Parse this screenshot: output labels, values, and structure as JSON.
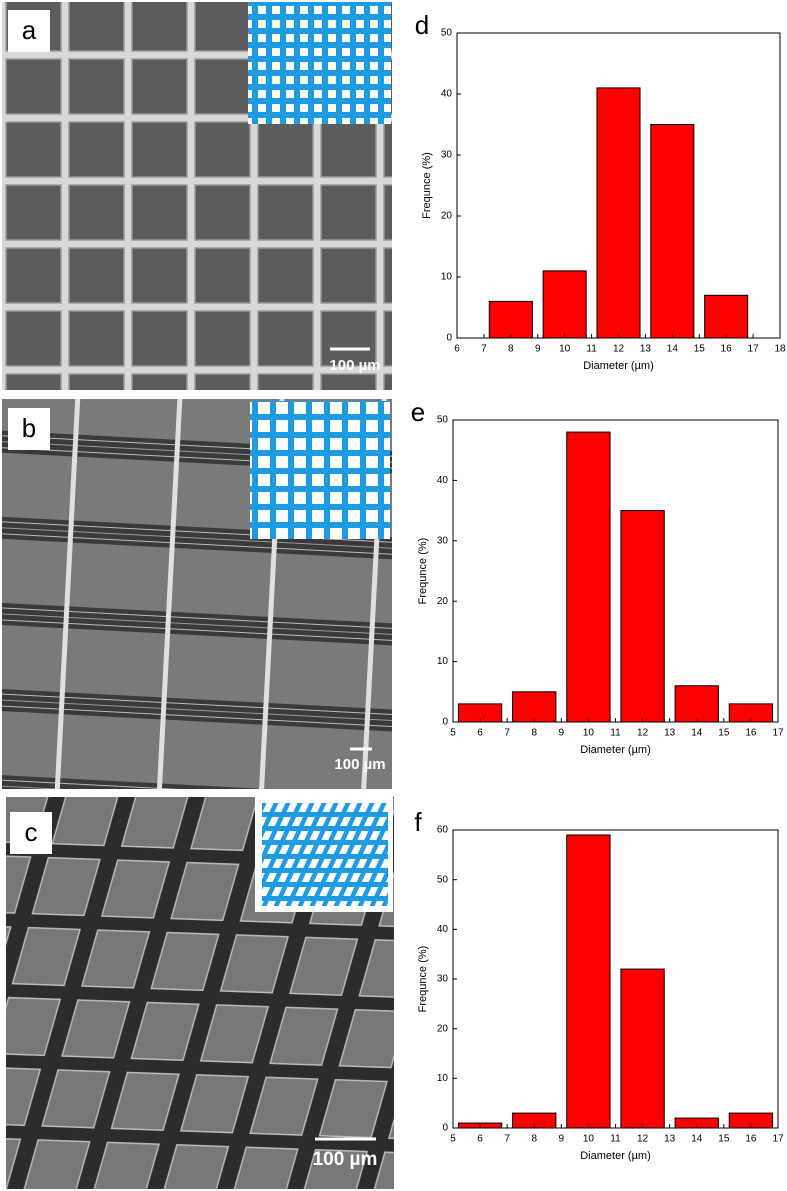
{
  "images": [
    {
      "label": "a",
      "scale_bar": "100 µm"
    },
    {
      "label": "b",
      "scale_bar": "100 µm"
    },
    {
      "label": "c",
      "scale_bar": "100 µm"
    }
  ],
  "chart_data": [
    {
      "type": "bar",
      "label": "d",
      "x": [
        8,
        10,
        12,
        14,
        16
      ],
      "values": [
        6,
        11,
        41,
        35,
        7
      ],
      "color": "#ff0000",
      "xlabel": "Diameter (µm)",
      "ylabel": "Frequnce (%)",
      "xlim": [
        6,
        18
      ],
      "xticks": [
        6,
        7,
        8,
        9,
        10,
        11,
        12,
        13,
        14,
        15,
        16,
        17,
        18
      ],
      "ylim": [
        0,
        50
      ],
      "yticks": [
        0,
        10,
        20,
        30,
        40,
        50
      ],
      "grid": false
    },
    {
      "type": "bar",
      "label": "e",
      "x": [
        6,
        8,
        10,
        12,
        14,
        16
      ],
      "values": [
        3,
        5,
        48,
        35,
        6,
        3
      ],
      "color": "#ff0000",
      "xlabel": "Diameter (µm)",
      "ylabel": "Frequnce (%)",
      "xlim": [
        5,
        17
      ],
      "xticks": [
        5,
        6,
        7,
        8,
        9,
        10,
        11,
        12,
        13,
        14,
        15,
        16,
        17
      ],
      "ylim": [
        0,
        50
      ],
      "yticks": [
        0,
        10,
        20,
        30,
        40,
        50
      ],
      "grid": false
    },
    {
      "type": "bar",
      "label": "f",
      "x": [
        6,
        8,
        10,
        12,
        14,
        16
      ],
      "values": [
        1,
        3,
        59,
        32,
        2,
        3
      ],
      "color": "#ff0000",
      "xlabel": "Diameter (µm)",
      "ylabel": "Frequnce (%)",
      "xlim": [
        5,
        17
      ],
      "xticks": [
        5,
        6,
        7,
        8,
        9,
        10,
        11,
        12,
        13,
        14,
        15,
        16,
        17
      ],
      "ylim": [
        0,
        60
      ],
      "yticks": [
        0,
        10,
        20,
        30,
        40,
        50,
        60
      ],
      "grid": false
    }
  ]
}
